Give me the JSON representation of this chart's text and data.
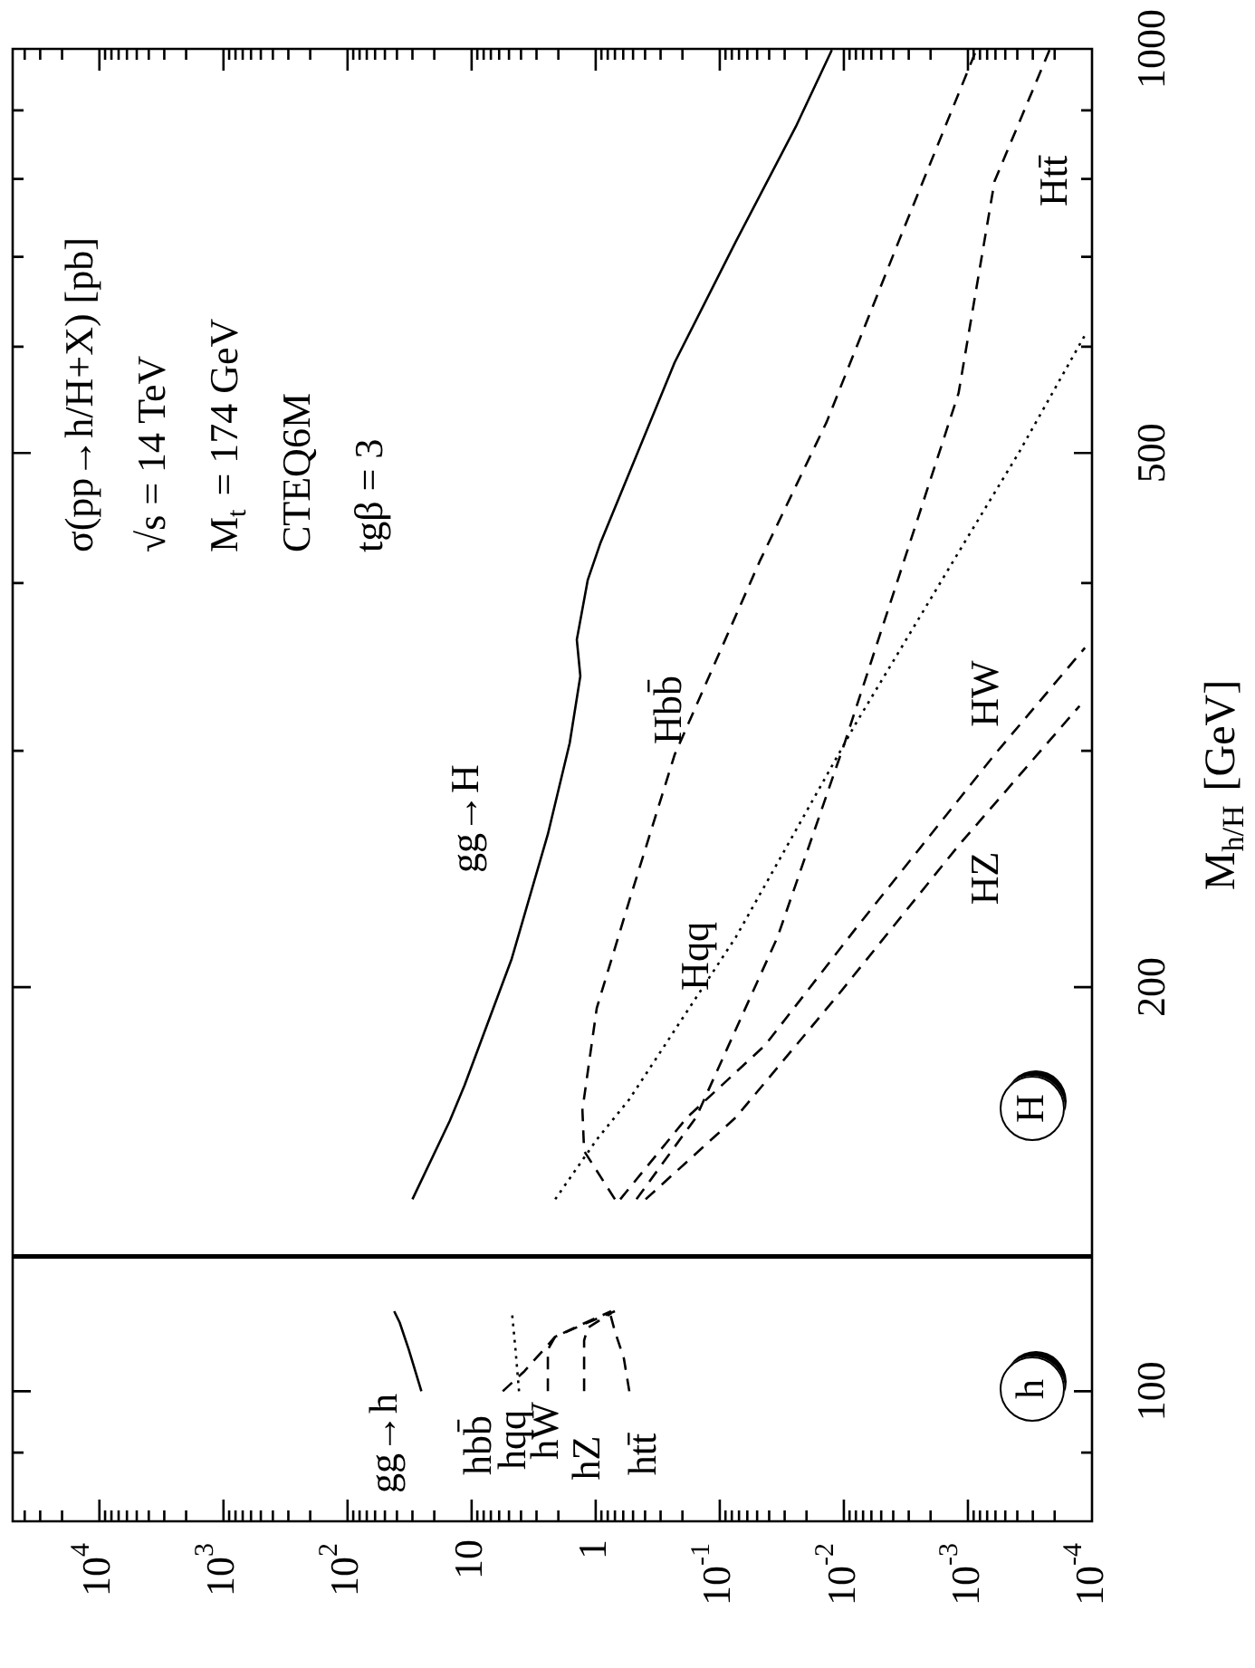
{
  "chart_data": {
    "type": "line",
    "ylabel": "M$_{h/H}$ [GeV]",
    "log": "xy",
    "marker": "none",
    "ylim": [
      80,
      1000
    ],
    "xlim": [
      50000,
      0.0001
    ],
    "yticks": [
      {
        "value": 90,
        "label": null
      },
      100,
      200,
      {
        "value": 300,
        "label": null
      },
      {
        "value": 400,
        "label": null
      },
      500,
      {
        "value": 600,
        "label": null
      },
      {
        "value": 700,
        "label": null
      },
      {
        "value": 800,
        "label": null
      },
      {
        "value": 900,
        "label": null
      },
      1000
    ],
    "xticks": [
      {
        "value": 0.0001,
        "label": "10$^{-4}$"
      },
      {
        "value": 0.0002,
        "label": null
      },
      {
        "value": 0.0003,
        "label": null
      },
      {
        "value": 0.0004,
        "label": null
      },
      {
        "value": 0.0005,
        "label": null
      },
      {
        "value": 0.0006,
        "label": null
      },
      {
        "value": 0.0007,
        "label": null
      },
      {
        "value": 0.0008,
        "label": null
      },
      {
        "value": 0.0009,
        "label": null
      },
      {
        "value": 0.001,
        "label": "10$^{-3}$"
      },
      {
        "value": 0.002,
        "label": null
      },
      {
        "value": 0.003,
        "label": null
      },
      {
        "value": 0.004,
        "label": null
      },
      {
        "value": 0.005,
        "label": null
      },
      {
        "value": 0.006,
        "label": null
      },
      {
        "value": 0.007,
        "label": null
      },
      {
        "value": 0.008,
        "label": null
      },
      {
        "value": 0.009,
        "label": null
      },
      {
        "value": 0.01,
        "label": "10$^{-2}$"
      },
      {
        "value": 0.02,
        "label": null
      },
      {
        "value": 0.03,
        "label": null
      },
      {
        "value": 0.04,
        "label": null
      },
      {
        "value": 0.05,
        "label": null
      },
      {
        "value": 0.06,
        "label": null
      },
      {
        "value": 0.07,
        "label": null
      },
      {
        "value": 0.08,
        "label": null
      },
      {
        "value": 0.09,
        "label": null
      },
      {
        "value": 0.1,
        "label": "10$^{-1}$"
      },
      {
        "value": 0.2,
        "label": null
      },
      {
        "value": 0.3,
        "label": null
      },
      {
        "value": 0.4,
        "label": null
      },
      {
        "value": 0.5,
        "label": null
      },
      {
        "value": 0.6,
        "label": null
      },
      {
        "value": 0.7,
        "label": null
      },
      {
        "value": 0.8,
        "label": null
      },
      {
        "value": 0.9,
        "label": null
      },
      1,
      {
        "value": 2,
        "label": null
      },
      {
        "value": 3,
        "label": null
      },
      {
        "value": 4,
        "label": null
      },
      {
        "value": 5,
        "label": null
      },
      {
        "value": 6,
        "label": null
      },
      {
        "value": 7,
        "label": null
      },
      {
        "value": 8,
        "label": null
      },
      {
        "value": 9,
        "label": null
      },
      10,
      {
        "value": 20,
        "label": null
      },
      {
        "value": 30,
        "label": null
      },
      {
        "value": 40,
        "label": null
      },
      {
        "value": 50,
        "label": null
      },
      {
        "value": 60,
        "label": null
      },
      {
        "value": 70,
        "label": null
      },
      {
        "value": 80,
        "label": null
      },
      {
        "value": 90,
        "label": null
      },
      {
        "value": 100,
        "label": "10$^{2}$"
      },
      {
        "value": 200,
        "label": null
      },
      {
        "value": 300,
        "label": null
      },
      {
        "value": 400,
        "label": null
      },
      {
        "value": 500,
        "label": null
      },
      {
        "value": 600,
        "label": null
      },
      {
        "value": 700,
        "label": null
      },
      {
        "value": 800,
        "label": null
      },
      {
        "value": 900,
        "label": null
      },
      {
        "value": 1000,
        "label": "10$^{3}$"
      },
      {
        "value": 2000,
        "label": null
      },
      {
        "value": 3000,
        "label": null
      },
      {
        "value": 4000,
        "label": null
      },
      {
        "value": 5000,
        "label": null
      },
      {
        "value": 6000,
        "label": null
      },
      {
        "value": 7000,
        "label": null
      },
      {
        "value": 8000,
        "label": null
      },
      {
        "value": 9000,
        "label": null
      },
      {
        "value": 10000,
        "label": "10$^{4}$"
      },
      {
        "value": 20000,
        "label": null
      },
      {
        "value": 30000,
        "label": null
      },
      {
        "value": 40000,
        "label": null
      }
    ],
    "series": [
      {
        "color": "#000000",
        "line_style": "solid",
        "values": [
          100,
          107.4,
          112.5,
          114.7
        ],
        "x": [
          25.4,
          32.1,
          38.0,
          42.1
        ]
      },
      {
        "color": "#000000",
        "line_style": "dashed",
        "values": [
          100,
          103.5,
          109.8,
          112.5,
          114.7
        ],
        "x": [
          5.61,
          3.75,
          2.12,
          1.16,
          0.7
        ]
      },
      {
        "color": "#000000",
        "line_style": "dotted",
        "values": [
          100,
          107.4,
          114.7
        ],
        "x": [
          4.15,
          4.43,
          4.74
        ]
      },
      {
        "color": "#000000",
        "line_style": "dashed",
        "values": [
          100,
          107.4,
          109.8,
          112.2,
          114.7
        ],
        "x": [
          2.43,
          2.43,
          2.12,
          1.28,
          0.75
        ]
      },
      {
        "color": "#000000",
        "line_style": "dashed",
        "values": [
          100,
          109.1,
          111.5,
          114.3
        ],
        "x": [
          1.24,
          1.24,
          1.16,
          0.75
        ]
      },
      {
        "color": "#000000",
        "line_style": "dashed",
        "values": [
          100,
          105.8,
          110.8,
          114.7
        ],
        "x": [
          0.536,
          0.593,
          0.7,
          0.774
        ]
      },
      {
        "color": "#000000",
        "line_style": "solid",
        "values": [
          139,
          159,
          169,
          210,
          260,
          304,
          341,
          363,
          402,
          428,
          584,
          719,
          875,
          998
        ],
        "x": [
          30,
          15,
          11.4,
          4.75,
          2.43,
          1.62,
          1.33,
          1.42,
          1.16,
          0.92,
          0.231,
          0.074,
          0.0244,
          0.0125
        ]
      },
      {
        "color": "#000000",
        "line_style": "dashed",
        "values": [
          139,
          151,
          162,
          193,
          232,
          298,
          415,
          527,
          719,
          1000
        ],
        "x": [
          0.7,
          1.24,
          1.28,
          0.98,
          0.536,
          0.231,
          0.0478,
          0.0138,
          0.00361,
          0.00085
        ]
      },
      {
        "color": "#000000",
        "line_style": "dashed",
        "values": [
          139,
          160,
          218,
          304,
          428,
          554,
          797,
          998
        ],
        "x": [
          0.469,
          0.155,
          0.0342,
          0.00986,
          0.00295,
          0.00119,
          0.00061,
          0.00022
        ]
      },
      {
        "color": "#000000",
        "line_style": "dotted",
        "values": [
          139,
          154,
          165,
          218,
          314,
          428,
          500,
          612
        ],
        "x": [
          2.12,
          0.98,
          0.536,
          0.074,
          0.00807,
          0.00108,
          0.00039,
          0.000114
        ]
      },
      {
        "color": "#000000",
        "line_style": "dashed",
        "values": [
          139,
          160,
          181,
          221,
          298,
          358
        ],
        "x": [
          0.634,
          0.183,
          0.0432,
          0.00807,
          0.00061,
          0.000114
        ]
      },
      {
        "color": "#000000",
        "line_style": "dashed",
        "values": [
          139,
          160,
          197,
          255,
          324
        ],
        "x": [
          0.396,
          0.074,
          0.0113,
          0.00119,
          0.000126
        ]
      }
    ],
    "ref_lines": [
      {
        "axis": "y",
        "value": 126,
        "line_style": "solid",
        "color": "#000000"
      }
    ],
    "annotations": [
      "σ(pp→h/H+X) [pb]",
      "√s = 14 TeV",
      "M$_{t}$ = 174 GeV",
      "CTEQ6M",
      "tgβ = 3",
      "gg→h",
      "hbb̄",
      "hqq",
      "hW",
      "hZ",
      "htt̄",
      "gg→H",
      "Hbb̄",
      "Hqq",
      "HZ",
      "HW",
      "Htt̄",
      "h",
      "H"
    ]
  }
}
